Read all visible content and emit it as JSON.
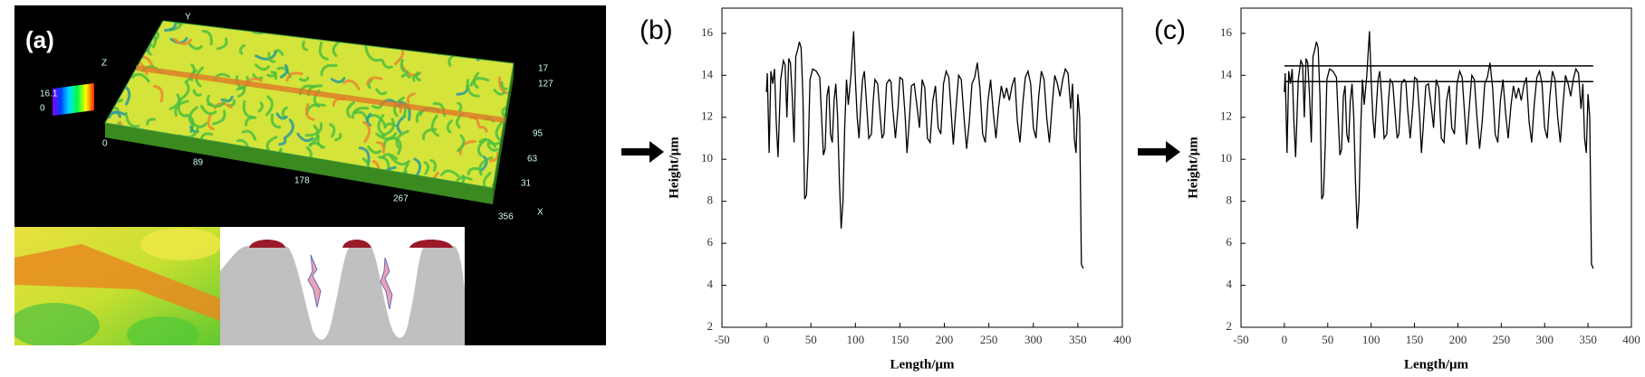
{
  "panel_a": {
    "label": "(a)",
    "axis_texts": [
      "Y",
      "Z",
      "16.1",
      "0",
      "0",
      "89",
      "178",
      "267",
      "356",
      "X",
      "17",
      "127",
      "95",
      "63",
      "31"
    ]
  },
  "chart_data": [
    {
      "type": "line",
      "label": "(b)",
      "xlabel": "Length/μm",
      "ylabel": "Height/μm",
      "xlim": [
        -50,
        400
      ],
      "ylim": [
        2,
        17.2
      ],
      "xticks": [
        -50,
        0,
        50,
        100,
        150,
        200,
        250,
        300,
        350,
        400
      ],
      "yticks": [
        2,
        4,
        6,
        8,
        10,
        12,
        14,
        16
      ],
      "x": [
        0,
        1,
        3,
        5,
        7,
        9,
        11,
        13,
        16,
        19,
        21,
        23,
        25,
        27,
        29,
        31,
        33,
        35,
        37,
        39,
        41,
        43,
        45,
        47,
        49,
        52,
        56,
        60,
        62,
        64,
        66,
        68,
        70,
        72,
        74,
        76,
        78,
        80,
        82,
        84,
        86,
        88,
        90,
        92,
        95,
        98,
        100,
        102,
        104,
        106,
        108,
        110,
        112,
        115,
        118,
        120,
        122,
        125,
        128,
        130,
        132,
        135,
        138,
        140,
        142,
        145,
        148,
        150,
        153,
        156,
        158,
        160,
        163,
        166,
        169,
        172,
        175,
        178,
        181,
        184,
        187,
        190,
        193,
        196,
        199,
        202,
        205,
        208,
        210,
        213,
        216,
        219,
        222,
        225,
        228,
        231,
        234,
        237,
        240,
        243,
        246,
        249,
        252,
        255,
        258,
        261,
        264,
        267,
        270,
        273,
        276,
        279,
        282,
        285,
        288,
        291,
        294,
        297,
        300,
        303,
        306,
        309,
        312,
        315,
        318,
        321,
        324,
        327,
        330,
        333,
        336,
        339,
        342,
        344,
        346,
        348,
        350,
        352,
        354,
        356
      ],
      "series": [
        {
          "color": "#000000",
          "values": [
            13.2,
            14.1,
            10.3,
            14.2,
            13.6,
            14.3,
            11.8,
            10.1,
            13.8,
            14.7,
            14.5,
            12.0,
            14.8,
            14.6,
            13.0,
            10.8,
            14.9,
            15.2,
            15.6,
            15.3,
            13.0,
            8.1,
            8.3,
            10.5,
            13.8,
            14.3,
            14.2,
            13.9,
            12.0,
            10.2,
            10.5,
            13.0,
            13.5,
            11.2,
            10.8,
            12.8,
            13.6,
            12.0,
            8.9,
            6.7,
            8.0,
            11.5,
            13.8,
            12.6,
            14.0,
            16.1,
            13.8,
            12.0,
            11.0,
            12.5,
            13.8,
            14.2,
            13.0,
            11.0,
            11.2,
            12.8,
            13.8,
            13.6,
            12.0,
            11.0,
            11.2,
            13.6,
            13.8,
            13.7,
            12.4,
            11.0,
            12.5,
            13.9,
            13.8,
            12.0,
            10.3,
            11.5,
            13.5,
            13.6,
            12.6,
            11.5,
            13.8,
            13.4,
            11.0,
            10.8,
            12.8,
            13.5,
            11.5,
            11.2,
            13.6,
            14.2,
            13.9,
            12.0,
            10.7,
            12.4,
            14.0,
            13.8,
            12.0,
            10.5,
            11.8,
            13.6,
            13.9,
            14.6,
            13.4,
            11.2,
            10.8,
            12.8,
            13.8,
            12.2,
            11.0,
            12.5,
            13.5,
            12.9,
            13.4,
            12.8,
            13.5,
            13.9,
            11.8,
            10.8,
            12.6,
            13.9,
            14.2,
            13.6,
            11.5,
            11.0,
            13.0,
            14.2,
            13.8,
            12.0,
            10.8,
            12.5,
            14.0,
            13.6,
            13.0,
            13.8,
            14.3,
            14.1,
            12.4,
            13.6,
            11.0,
            10.3,
            13.1,
            12.0,
            5.0,
            4.8
          ]
        }
      ]
    },
    {
      "type": "line",
      "label": "(c)",
      "xlabel": "Length/μm",
      "ylabel": "Height/μm",
      "xlim": [
        -50,
        400
      ],
      "ylim": [
        2,
        17.2
      ],
      "xticks": [
        -50,
        0,
        50,
        100,
        150,
        200,
        250,
        300,
        350,
        400
      ],
      "yticks": [
        2,
        4,
        6,
        8,
        10,
        12,
        14,
        16
      ],
      "hlines": [
        14.45,
        13.7
      ],
      "x": [
        0,
        1,
        3,
        5,
        7,
        9,
        11,
        13,
        16,
        19,
        21,
        23,
        25,
        27,
        29,
        31,
        33,
        35,
        37,
        39,
        41,
        43,
        45,
        47,
        49,
        52,
        56,
        60,
        62,
        64,
        66,
        68,
        70,
        72,
        74,
        76,
        78,
        80,
        82,
        84,
        86,
        88,
        90,
        92,
        95,
        98,
        100,
        102,
        104,
        106,
        108,
        110,
        112,
        115,
        118,
        120,
        122,
        125,
        128,
        130,
        132,
        135,
        138,
        140,
        142,
        145,
        148,
        150,
        153,
        156,
        158,
        160,
        163,
        166,
        169,
        172,
        175,
        178,
        181,
        184,
        187,
        190,
        193,
        196,
        199,
        202,
        205,
        208,
        210,
        213,
        216,
        219,
        222,
        225,
        228,
        231,
        234,
        237,
        240,
        243,
        246,
        249,
        252,
        255,
        258,
        261,
        264,
        267,
        270,
        273,
        276,
        279,
        282,
        285,
        288,
        291,
        294,
        297,
        300,
        303,
        306,
        309,
        312,
        315,
        318,
        321,
        324,
        327,
        330,
        333,
        336,
        339,
        342,
        344,
        346,
        348,
        350,
        352,
        354,
        356
      ],
      "series": [
        {
          "color": "#000000",
          "values": [
            13.2,
            14.1,
            10.3,
            14.2,
            13.6,
            14.3,
            11.8,
            10.1,
            13.8,
            14.7,
            14.5,
            12.0,
            14.8,
            14.6,
            13.0,
            10.8,
            14.9,
            15.2,
            15.6,
            15.3,
            13.0,
            8.1,
            8.3,
            10.5,
            13.8,
            14.3,
            14.2,
            13.9,
            12.0,
            10.2,
            10.5,
            13.0,
            13.5,
            11.2,
            10.8,
            12.8,
            13.6,
            12.0,
            8.9,
            6.7,
            8.0,
            11.5,
            13.8,
            12.6,
            14.0,
            16.1,
            13.8,
            12.0,
            11.0,
            12.5,
            13.8,
            14.2,
            13.0,
            11.0,
            11.2,
            12.8,
            13.8,
            13.6,
            12.0,
            11.0,
            11.2,
            13.6,
            13.8,
            13.7,
            12.4,
            11.0,
            12.5,
            13.9,
            13.8,
            12.0,
            10.3,
            11.5,
            13.5,
            13.6,
            12.6,
            11.5,
            13.8,
            13.4,
            11.0,
            10.8,
            12.8,
            13.5,
            11.5,
            11.2,
            13.6,
            14.2,
            13.9,
            12.0,
            10.7,
            12.4,
            14.0,
            13.8,
            12.0,
            10.5,
            11.8,
            13.6,
            13.9,
            14.6,
            13.4,
            11.2,
            10.8,
            12.8,
            13.8,
            12.2,
            11.0,
            12.5,
            13.5,
            12.9,
            13.4,
            12.8,
            13.5,
            13.9,
            11.8,
            10.8,
            12.6,
            13.9,
            14.2,
            13.6,
            11.5,
            11.0,
            13.0,
            14.2,
            13.8,
            12.0,
            10.8,
            12.5,
            14.0,
            13.6,
            13.0,
            13.8,
            14.3,
            14.1,
            12.4,
            13.6,
            11.0,
            10.3,
            13.1,
            12.0,
            5.0,
            4.8
          ]
        }
      ]
    }
  ]
}
